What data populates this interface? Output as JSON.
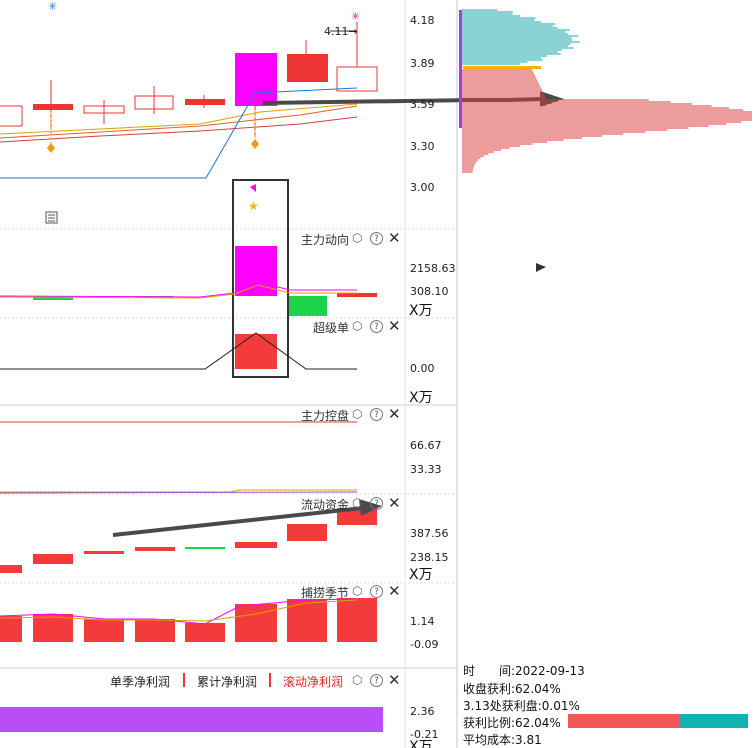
{
  "price_axis": [
    "4.18",
    "3.89",
    "3.59",
    "3.30",
    "3.00"
  ],
  "annot_411": "4.11→",
  "panels": {
    "main_force": {
      "title": "主力动向",
      "ticks": [
        "2158.63",
        "308.10"
      ],
      "unit": "X万"
    },
    "super_order": {
      "title": "超级单",
      "ticks": [
        "0.00"
      ],
      "unit": "X万"
    },
    "control": {
      "title": "主力控盘",
      "ticks": [
        "66.67",
        "33.33"
      ]
    },
    "flow": {
      "title": "流动资金",
      "ticks": [
        "387.56",
        "238.15"
      ],
      "unit": "X万"
    },
    "season": {
      "title": "捕捞季节",
      "ticks": [
        "1.14",
        "-0.09"
      ]
    },
    "profit": {
      "ticks": [
        "2.36",
        "-0.21"
      ],
      "unit_partial": "X万"
    }
  },
  "profit_tabs": [
    "单季净利润",
    "累计净利润",
    "滚动净利润"
  ],
  "icons": {
    "settings": "hexagon-settings-icon",
    "help": "question-icon",
    "close": "close-icon"
  },
  "info": {
    "time_label": "时　　间:",
    "time_value": "2022-09-13",
    "close_profit": "收盘获利:62.04%",
    "pos_profit": "3.13处获利盘:0.01%",
    "profit_ratio": "获利比例:62.04%",
    "avg_cost": "平均成本:3.81"
  },
  "colors": {
    "up": "#f43b3b",
    "down": "#1bd44a",
    "magenta": "#ff00ff",
    "teal": "#17a6a8",
    "profit_bar_red": "#f45555",
    "profit_bar_teal": "#11b3b3",
    "purple_bar": "#b84ef5"
  }
}
